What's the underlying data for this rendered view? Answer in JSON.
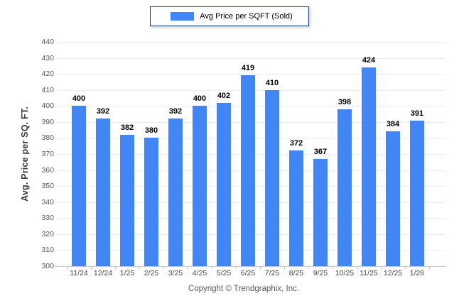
{
  "chart_data": {
    "type": "bar",
    "legend": "Avg Price per SQFT (Sold)",
    "legend_position": "top",
    "categories": [
      "11/24",
      "12/24",
      "1/25",
      "2/25",
      "3/25",
      "4/25",
      "5/25",
      "6/25",
      "7/25",
      "8/25",
      "9/25",
      "10/25",
      "11/25",
      "12/25",
      "1/26"
    ],
    "values": [
      400,
      392,
      382,
      380,
      392,
      400,
      402,
      419,
      410,
      372,
      367,
      398,
      424,
      384,
      391
    ],
    "xlabel": "",
    "ylabel": "Avg. Price per SQ. FT.",
    "ylim": [
      300,
      440
    ],
    "ytick_step": 10,
    "yticks": [
      300,
      310,
      320,
      330,
      340,
      350,
      360,
      370,
      380,
      390,
      400,
      410,
      420,
      430,
      440
    ],
    "grid": true,
    "bar_color": "#4285f4"
  },
  "footer": {
    "copyright": "Copyright © Trendgraphix, Inc."
  },
  "colors": {
    "bar": "#4285f4",
    "legend_border": "#1f4171",
    "gridline": "#ececec",
    "axis_line": "#c6c6c6",
    "tick_label": "#595959",
    "value_label": "#000000",
    "background": "#ffffff"
  }
}
